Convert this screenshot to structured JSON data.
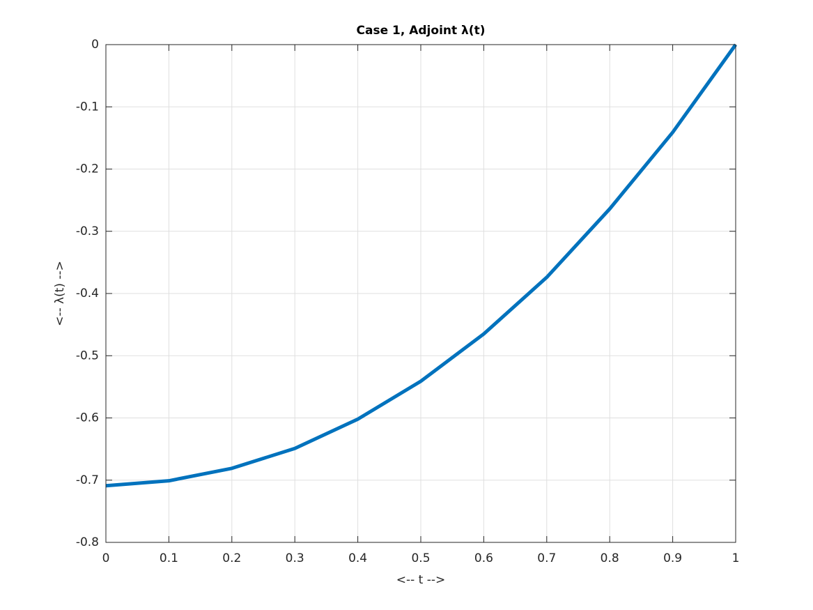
{
  "chart_data": {
    "type": "line",
    "title": "Case 1, Adjoint λ(t)",
    "x_label": "<-- t -->",
    "y_label": "<-- λ(t) -->",
    "x": [
      0,
      0.1,
      0.2,
      0.3,
      0.4,
      0.5,
      0.6,
      0.7,
      0.8,
      0.9,
      1
    ],
    "series": [
      {
        "name": "λ(t)",
        "color": "#0072bd",
        "values": [
          -0.709,
          -0.701,
          -0.681,
          -0.649,
          -0.602,
          -0.541,
          -0.465,
          -0.374,
          -0.264,
          -0.141,
          0
        ]
      }
    ],
    "xlim": [
      0,
      1
    ],
    "ylim": [
      -0.8,
      0
    ],
    "xticks": [
      0,
      0.1,
      0.2,
      0.3,
      0.4,
      0.5,
      0.6,
      0.7,
      0.8,
      0.9,
      1
    ],
    "yticks": [
      -0.8,
      -0.7,
      -0.6,
      -0.5,
      -0.4,
      -0.3,
      -0.2,
      -0.1,
      0
    ],
    "grid": true
  }
}
